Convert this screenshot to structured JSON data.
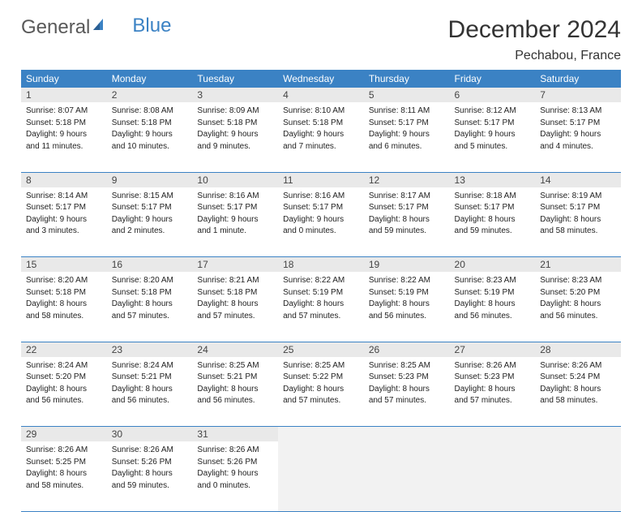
{
  "brand": {
    "part1": "General",
    "part2": "Blue"
  },
  "title": "December 2024",
  "location": "Pechabou, France",
  "colors": {
    "header_bg": "#3b82c4",
    "daynum_bg": "#e9e9e9",
    "empty_bg": "#f2f2f2",
    "text": "#222222",
    "title_text": "#333333"
  },
  "dow": [
    "Sunday",
    "Monday",
    "Tuesday",
    "Wednesday",
    "Thursday",
    "Friday",
    "Saturday"
  ],
  "weeks": [
    [
      {
        "n": "1",
        "sr": "Sunrise: 8:07 AM",
        "ss": "Sunset: 5:18 PM",
        "d1": "Daylight: 9 hours",
        "d2": "and 11 minutes."
      },
      {
        "n": "2",
        "sr": "Sunrise: 8:08 AM",
        "ss": "Sunset: 5:18 PM",
        "d1": "Daylight: 9 hours",
        "d2": "and 10 minutes."
      },
      {
        "n": "3",
        "sr": "Sunrise: 8:09 AM",
        "ss": "Sunset: 5:18 PM",
        "d1": "Daylight: 9 hours",
        "d2": "and 9 minutes."
      },
      {
        "n": "4",
        "sr": "Sunrise: 8:10 AM",
        "ss": "Sunset: 5:18 PM",
        "d1": "Daylight: 9 hours",
        "d2": "and 7 minutes."
      },
      {
        "n": "5",
        "sr": "Sunrise: 8:11 AM",
        "ss": "Sunset: 5:17 PM",
        "d1": "Daylight: 9 hours",
        "d2": "and 6 minutes."
      },
      {
        "n": "6",
        "sr": "Sunrise: 8:12 AM",
        "ss": "Sunset: 5:17 PM",
        "d1": "Daylight: 9 hours",
        "d2": "and 5 minutes."
      },
      {
        "n": "7",
        "sr": "Sunrise: 8:13 AM",
        "ss": "Sunset: 5:17 PM",
        "d1": "Daylight: 9 hours",
        "d2": "and 4 minutes."
      }
    ],
    [
      {
        "n": "8",
        "sr": "Sunrise: 8:14 AM",
        "ss": "Sunset: 5:17 PM",
        "d1": "Daylight: 9 hours",
        "d2": "and 3 minutes."
      },
      {
        "n": "9",
        "sr": "Sunrise: 8:15 AM",
        "ss": "Sunset: 5:17 PM",
        "d1": "Daylight: 9 hours",
        "d2": "and 2 minutes."
      },
      {
        "n": "10",
        "sr": "Sunrise: 8:16 AM",
        "ss": "Sunset: 5:17 PM",
        "d1": "Daylight: 9 hours",
        "d2": "and 1 minute."
      },
      {
        "n": "11",
        "sr": "Sunrise: 8:16 AM",
        "ss": "Sunset: 5:17 PM",
        "d1": "Daylight: 9 hours",
        "d2": "and 0 minutes."
      },
      {
        "n": "12",
        "sr": "Sunrise: 8:17 AM",
        "ss": "Sunset: 5:17 PM",
        "d1": "Daylight: 8 hours",
        "d2": "and 59 minutes."
      },
      {
        "n": "13",
        "sr": "Sunrise: 8:18 AM",
        "ss": "Sunset: 5:17 PM",
        "d1": "Daylight: 8 hours",
        "d2": "and 59 minutes."
      },
      {
        "n": "14",
        "sr": "Sunrise: 8:19 AM",
        "ss": "Sunset: 5:17 PM",
        "d1": "Daylight: 8 hours",
        "d2": "and 58 minutes."
      }
    ],
    [
      {
        "n": "15",
        "sr": "Sunrise: 8:20 AM",
        "ss": "Sunset: 5:18 PM",
        "d1": "Daylight: 8 hours",
        "d2": "and 58 minutes."
      },
      {
        "n": "16",
        "sr": "Sunrise: 8:20 AM",
        "ss": "Sunset: 5:18 PM",
        "d1": "Daylight: 8 hours",
        "d2": "and 57 minutes."
      },
      {
        "n": "17",
        "sr": "Sunrise: 8:21 AM",
        "ss": "Sunset: 5:18 PM",
        "d1": "Daylight: 8 hours",
        "d2": "and 57 minutes."
      },
      {
        "n": "18",
        "sr": "Sunrise: 8:22 AM",
        "ss": "Sunset: 5:19 PM",
        "d1": "Daylight: 8 hours",
        "d2": "and 57 minutes."
      },
      {
        "n": "19",
        "sr": "Sunrise: 8:22 AM",
        "ss": "Sunset: 5:19 PM",
        "d1": "Daylight: 8 hours",
        "d2": "and 56 minutes."
      },
      {
        "n": "20",
        "sr": "Sunrise: 8:23 AM",
        "ss": "Sunset: 5:19 PM",
        "d1": "Daylight: 8 hours",
        "d2": "and 56 minutes."
      },
      {
        "n": "21",
        "sr": "Sunrise: 8:23 AM",
        "ss": "Sunset: 5:20 PM",
        "d1": "Daylight: 8 hours",
        "d2": "and 56 minutes."
      }
    ],
    [
      {
        "n": "22",
        "sr": "Sunrise: 8:24 AM",
        "ss": "Sunset: 5:20 PM",
        "d1": "Daylight: 8 hours",
        "d2": "and 56 minutes."
      },
      {
        "n": "23",
        "sr": "Sunrise: 8:24 AM",
        "ss": "Sunset: 5:21 PM",
        "d1": "Daylight: 8 hours",
        "d2": "and 56 minutes."
      },
      {
        "n": "24",
        "sr": "Sunrise: 8:25 AM",
        "ss": "Sunset: 5:21 PM",
        "d1": "Daylight: 8 hours",
        "d2": "and 56 minutes."
      },
      {
        "n": "25",
        "sr": "Sunrise: 8:25 AM",
        "ss": "Sunset: 5:22 PM",
        "d1": "Daylight: 8 hours",
        "d2": "and 57 minutes."
      },
      {
        "n": "26",
        "sr": "Sunrise: 8:25 AM",
        "ss": "Sunset: 5:23 PM",
        "d1": "Daylight: 8 hours",
        "d2": "and 57 minutes."
      },
      {
        "n": "27",
        "sr": "Sunrise: 8:26 AM",
        "ss": "Sunset: 5:23 PM",
        "d1": "Daylight: 8 hours",
        "d2": "and 57 minutes."
      },
      {
        "n": "28",
        "sr": "Sunrise: 8:26 AM",
        "ss": "Sunset: 5:24 PM",
        "d1": "Daylight: 8 hours",
        "d2": "and 58 minutes."
      }
    ],
    [
      {
        "n": "29",
        "sr": "Sunrise: 8:26 AM",
        "ss": "Sunset: 5:25 PM",
        "d1": "Daylight: 8 hours",
        "d2": "and 58 minutes."
      },
      {
        "n": "30",
        "sr": "Sunrise: 8:26 AM",
        "ss": "Sunset: 5:26 PM",
        "d1": "Daylight: 8 hours",
        "d2": "and 59 minutes."
      },
      {
        "n": "31",
        "sr": "Sunrise: 8:26 AM",
        "ss": "Sunset: 5:26 PM",
        "d1": "Daylight: 9 hours",
        "d2": "and 0 minutes."
      },
      null,
      null,
      null,
      null
    ]
  ]
}
